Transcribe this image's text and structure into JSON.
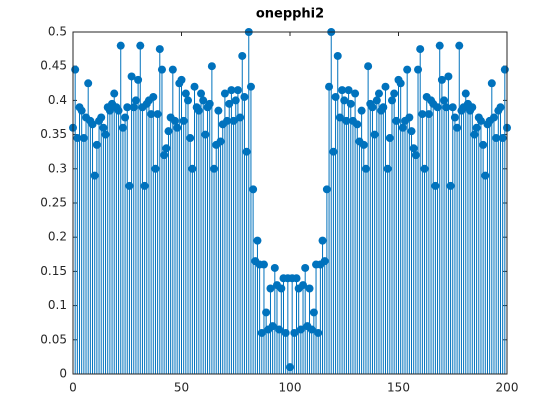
{
  "chart_data": {
    "type": "stem",
    "title": "onepphi2",
    "color": "#0072bd",
    "x": [
      0,
      1,
      2,
      3,
      4,
      5,
      6,
      7,
      8,
      9,
      10,
      11,
      12,
      13,
      14,
      15,
      16,
      17,
      18,
      19,
      20,
      21,
      22,
      23,
      24,
      25,
      26,
      27,
      28,
      29,
      30,
      31,
      32,
      33,
      34,
      35,
      36,
      37,
      38,
      39,
      40,
      41,
      42,
      43,
      44,
      45,
      46,
      47,
      48,
      49,
      50,
      51,
      52,
      53,
      54,
      55,
      56,
      57,
      58,
      59,
      60,
      61,
      62,
      63,
      64,
      65,
      66,
      67,
      68,
      69,
      70,
      71,
      72,
      73,
      74,
      75,
      76,
      77,
      78,
      79,
      80,
      81,
      82,
      83,
      84,
      85,
      86,
      87,
      88,
      89,
      90,
      91,
      92,
      93,
      94,
      95,
      96,
      97,
      98,
      99,
      100,
      101,
      102,
      103,
      104,
      105,
      106,
      107,
      108,
      109,
      110,
      111,
      112,
      113,
      114,
      115,
      116,
      117,
      118,
      119,
      120,
      121,
      122,
      123,
      124,
      125,
      126,
      127,
      128,
      129,
      130,
      131,
      132,
      133,
      134,
      135,
      136,
      137,
      138,
      139,
      140,
      141,
      142,
      143,
      144,
      145,
      146,
      147,
      148,
      149,
      150,
      151,
      152,
      153,
      154,
      155,
      156,
      157,
      158,
      159,
      160,
      161,
      162,
      163,
      164,
      165,
      166,
      167,
      168,
      169,
      170,
      171,
      172,
      173,
      174,
      175,
      176,
      177,
      178,
      179,
      180,
      181,
      182,
      183,
      184,
      185,
      186,
      187,
      188,
      189,
      190,
      191,
      192,
      193,
      194,
      195,
      196,
      197,
      198,
      199,
      200
    ],
    "values": [
      0.36,
      0.445,
      0.345,
      0.39,
      0.385,
      0.345,
      0.375,
      0.425,
      0.37,
      0.365,
      0.29,
      0.335,
      0.37,
      0.375,
      0.36,
      0.35,
      0.39,
      0.385,
      0.395,
      0.41,
      0.39,
      0.385,
      0.48,
      0.36,
      0.375,
      0.39,
      0.275,
      0.435,
      0.39,
      0.4,
      0.43,
      0.48,
      0.39,
      0.275,
      0.395,
      0.4,
      0.38,
      0.405,
      0.3,
      0.38,
      0.475,
      0.445,
      0.32,
      0.33,
      0.355,
      0.375,
      0.445,
      0.37,
      0.36,
      0.425,
      0.43,
      0.37,
      0.41,
      0.4,
      0.345,
      0.3,
      0.42,
      0.39,
      0.385,
      0.41,
      0.4,
      0.35,
      0.39,
      0.395,
      0.45,
      0.3,
      0.335,
      0.385,
      0.34,
      0.365,
      0.41,
      0.37,
      0.395,
      0.415,
      0.37,
      0.4,
      0.415,
      0.375,
      0.465,
      0.405,
      0.325,
      0.5,
      0.42,
      0.27,
      0.165,
      0.195,
      0.16,
      0.06,
      0.16,
      0.09,
      0.065,
      0.125,
      0.07,
      0.155,
      0.13,
      0.065,
      0.125,
      0.14,
      0.06,
      0.14,
      0.01,
      0.14,
      0.06,
      0.14,
      0.125,
      0.065,
      0.13,
      0.155,
      0.07,
      0.125,
      0.065,
      0.09,
      0.16,
      0.06,
      0.16,
      0.195,
      0.165,
      0.27,
      0.42,
      0.5,
      0.325,
      0.405,
      0.465,
      0.375,
      0.415,
      0.4,
      0.37,
      0.415,
      0.395,
      0.37,
      0.41,
      0.365,
      0.34,
      0.385,
      0.335,
      0.3,
      0.45,
      0.395,
      0.39,
      0.35,
      0.4,
      0.41,
      0.385,
      0.39,
      0.42,
      0.3,
      0.345,
      0.4,
      0.41,
      0.37,
      0.43,
      0.425,
      0.36,
      0.37,
      0.445,
      0.375,
      0.355,
      0.33,
      0.32,
      0.445,
      0.475,
      0.38,
      0.3,
      0.405,
      0.38,
      0.4,
      0.395,
      0.275,
      0.39,
      0.48,
      0.43,
      0.4,
      0.39,
      0.435,
      0.275,
      0.39,
      0.375,
      0.36,
      0.48,
      0.385,
      0.39,
      0.41,
      0.395,
      0.385,
      0.39,
      0.35,
      0.36,
      0.375,
      0.37,
      0.335,
      0.29,
      0.365,
      0.37,
      0.425,
      0.375,
      0.345,
      0.385,
      0.39,
      0.345,
      0.445,
      0.36
    ],
    "xlim": [
      0,
      200
    ],
    "xticks": [
      0,
      50,
      100,
      150,
      200
    ],
    "ylim": [
      0,
      0.5
    ],
    "yticks": [
      0,
      0.05,
      0.1,
      0.15,
      0.2,
      0.25,
      0.3,
      0.35,
      0.4,
      0.45,
      0.5
    ],
    "grid": false
  }
}
